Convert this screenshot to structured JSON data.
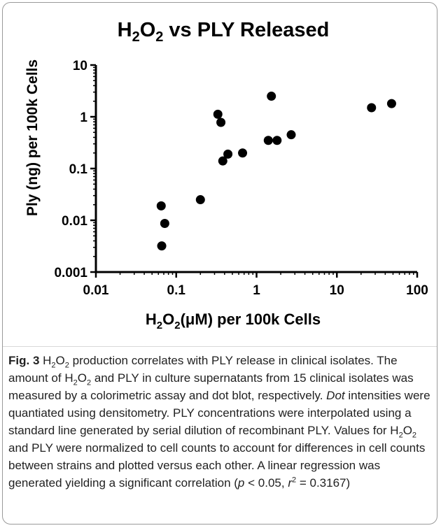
{
  "chart_data": {
    "type": "scatter",
    "title": {
      "base": "H",
      "sub1": "2",
      "mid": "O",
      "sub2": "2",
      "rest": " vs PLY Released"
    },
    "xlabel": {
      "base": "H",
      "sub1": "2",
      "mid": "O",
      "sub2": "2",
      "rest": "(μM) per 100k Cells"
    },
    "ylabel": "Ply (ng) per 100k Cells",
    "x_scale": "log",
    "y_scale": "log",
    "xlim": [
      0.01,
      100
    ],
    "ylim": [
      0.001,
      10
    ],
    "x_ticks": [
      0.01,
      0.1,
      1,
      10,
      100
    ],
    "x_tick_labels": [
      "0.01",
      "0.1",
      "1",
      "10",
      "100"
    ],
    "y_ticks": [
      0.001,
      0.01,
      0.1,
      1,
      10
    ],
    "y_tick_labels": [
      "0.001",
      "0.01",
      "0.1",
      "1",
      "10"
    ],
    "grid": false,
    "marker_color": "#000000",
    "points": [
      {
        "x": 0.065,
        "y": 0.019
      },
      {
        "x": 0.066,
        "y": 0.0032
      },
      {
        "x": 0.072,
        "y": 0.0087
      },
      {
        "x": 0.2,
        "y": 0.025
      },
      {
        "x": 0.33,
        "y": 1.12
      },
      {
        "x": 0.36,
        "y": 0.78
      },
      {
        "x": 0.38,
        "y": 0.14
      },
      {
        "x": 0.44,
        "y": 0.19
      },
      {
        "x": 0.67,
        "y": 0.2
      },
      {
        "x": 1.4,
        "y": 0.35
      },
      {
        "x": 1.53,
        "y": 2.5
      },
      {
        "x": 1.8,
        "y": 0.35
      },
      {
        "x": 2.7,
        "y": 0.45
      },
      {
        "x": 27,
        "y": 1.5
      },
      {
        "x": 48,
        "y": 1.8
      }
    ]
  },
  "caption": {
    "label": "Fig. 3",
    "segments": [
      {
        "t": " H"
      },
      {
        "sub": "2"
      },
      {
        "t": "O"
      },
      {
        "sub": "2"
      },
      {
        "t": " production correlates with PLY release in clinical isolates. The amount of H"
      },
      {
        "sub": "2"
      },
      {
        "t": "O"
      },
      {
        "sub": "2"
      },
      {
        "t": " and PLY in culture supernatants from 15 clinical isolates was measured by a colorimetric assay and dot blot, respectively. "
      },
      {
        "i": "Dot"
      },
      {
        "t": " intensities were quantiated using densitometry. PLY concentrations were interpolated using a standard line generated by serial dilution of recombinant PLY. Values for H"
      },
      {
        "sub": "2"
      },
      {
        "t": "O"
      },
      {
        "sub": "2"
      },
      {
        "t": " and PLY were normalized to cell counts to account for differences in cell counts between strains and plotted versus each other. A linear regression was generated yielding a significant correlation ("
      },
      {
        "i": "p"
      },
      {
        "t": " < 0.05, "
      },
      {
        "i": "r"
      },
      {
        "sup": "2"
      },
      {
        "t": " = 0.3167)"
      }
    ]
  }
}
